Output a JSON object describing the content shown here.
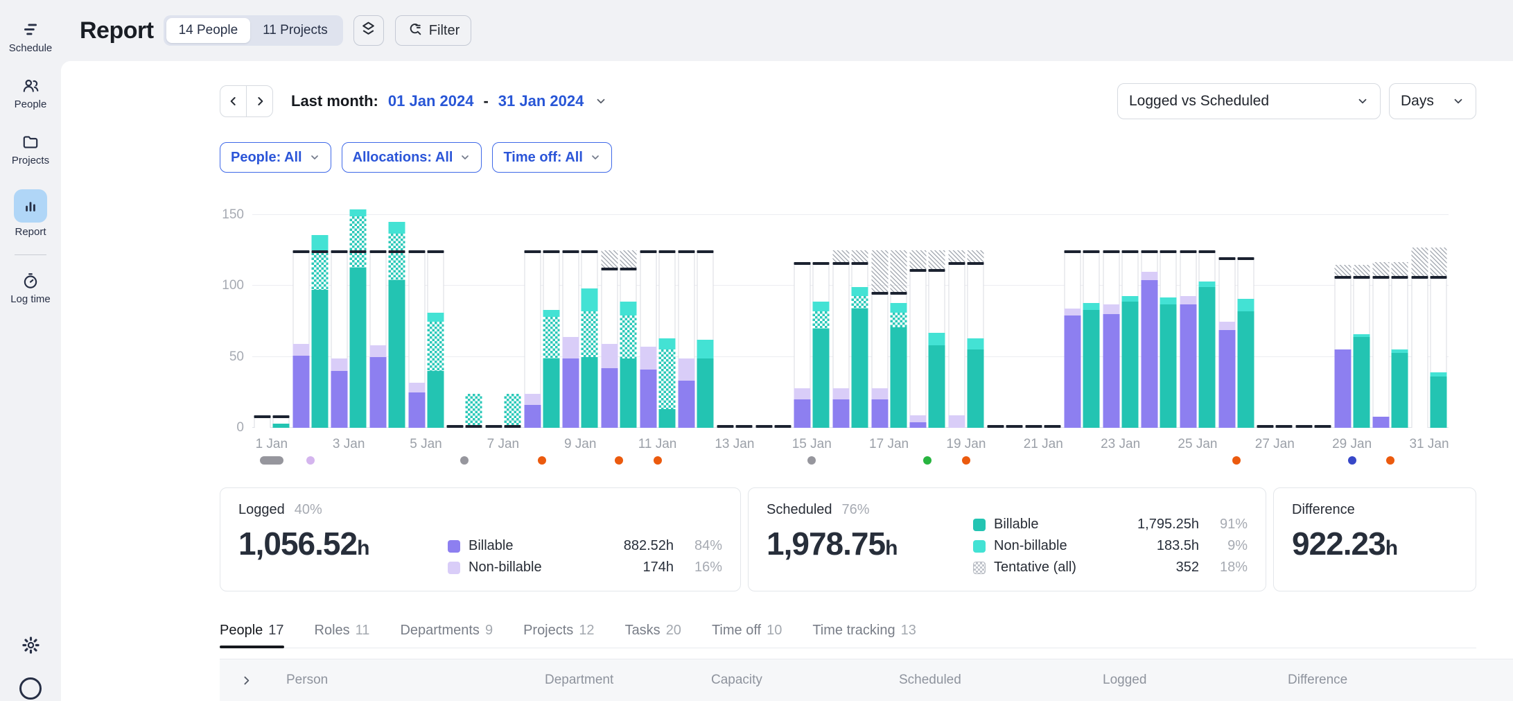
{
  "sidebar": {
    "items": [
      {
        "label": "Schedule",
        "icon": "schedule-icon",
        "active": false
      },
      {
        "label": "People",
        "icon": "people-icon",
        "active": false
      },
      {
        "label": "Projects",
        "icon": "folder-icon",
        "active": false
      },
      {
        "label": "Report",
        "icon": "bar-chart-icon",
        "active": true
      },
      {
        "label": "Log time",
        "icon": "stopwatch-icon",
        "active": false
      }
    ]
  },
  "header": {
    "title": "Report",
    "people_pill": "14 People",
    "projects_pill": "11 Projects",
    "filter_label": "Filter"
  },
  "toolbar": {
    "period_label": "Last month:",
    "start_date": "01 Jan 2024",
    "separator": "-",
    "end_date": "31 Jan 2024",
    "metric_dropdown": "Logged vs Scheduled",
    "unit_dropdown": "Days"
  },
  "filters": [
    {
      "label": "People: All"
    },
    {
      "label": "Allocations: All"
    },
    {
      "label": "Time off: All"
    }
  ],
  "chart_data": {
    "type": "bar",
    "stacked": true,
    "title": "Logged vs Scheduled by day",
    "unit": "hours",
    "ylim": [
      0,
      150
    ],
    "yticks": [
      0,
      50,
      100,
      150
    ],
    "xtick_labels": [
      "1 Jan",
      "3 Jan",
      "5 Jan",
      "7 Jan",
      "9 Jan",
      "11 Jan",
      "13 Jan",
      "15 Jan",
      "17 Jan",
      "19 Jan",
      "21 Jan",
      "23 Jan",
      "25 Jan",
      "27 Jan",
      "29 Jan",
      "31 Jan"
    ],
    "xtick_suffix": "Jan",
    "legend_series": [
      "Logged Billable",
      "Logged Non-billable",
      "Scheduled Billable",
      "Scheduled Tentative",
      "Scheduled Non-billable",
      "Capacity",
      "Tentative capacity"
    ],
    "day_fields": [
      "day",
      "capacity",
      "tentative_capacity_top",
      "logged_billable",
      "logged_nonbillable",
      "scheduled_billable",
      "scheduled_tentative",
      "scheduled_nonbillable"
    ],
    "days": [
      [
        1,
        9,
        0,
        0,
        0,
        3,
        0,
        0
      ],
      [
        2,
        125,
        0,
        51,
        8,
        97,
        28,
        11
      ],
      [
        3,
        125,
        0,
        40,
        9,
        113,
        36,
        5
      ],
      [
        4,
        125,
        0,
        50,
        8,
        104,
        33,
        8
      ],
      [
        5,
        125,
        0,
        25,
        7,
        40,
        35,
        6
      ],
      [
        6,
        0,
        0,
        0,
        0,
        0,
        24,
        0
      ],
      [
        7,
        0,
        0,
        0,
        0,
        0,
        24,
        0
      ],
      [
        8,
        125,
        0,
        16,
        8,
        49,
        29,
        5
      ],
      [
        9,
        125,
        0,
        49,
        15,
        50,
        32,
        16
      ],
      [
        10,
        113,
        125,
        42,
        17,
        49,
        30,
        10
      ],
      [
        11,
        125,
        0,
        41,
        16,
        13,
        42,
        8
      ],
      [
        12,
        125,
        0,
        33,
        16,
        49,
        0,
        13
      ],
      [
        13,
        0,
        0,
        0,
        0,
        0,
        0,
        0
      ],
      [
        14,
        0,
        0,
        0,
        0,
        0,
        0,
        0
      ],
      [
        15,
        117,
        0,
        20,
        8,
        70,
        12,
        7
      ],
      [
        16,
        117,
        125,
        20,
        8,
        84,
        9,
        6
      ],
      [
        17,
        96,
        125,
        20,
        8,
        71,
        10,
        7
      ],
      [
        18,
        112,
        125,
        4,
        5,
        58,
        0,
        9
      ],
      [
        19,
        117,
        125,
        0,
        9,
        55,
        0,
        8
      ],
      [
        20,
        0,
        0,
        0,
        0,
        0,
        0,
        0
      ],
      [
        21,
        0,
        0,
        0,
        0,
        0,
        0,
        0
      ],
      [
        22,
        125,
        0,
        79,
        5,
        83,
        0,
        5
      ],
      [
        23,
        125,
        0,
        80,
        7,
        89,
        0,
        4
      ],
      [
        24,
        125,
        0,
        104,
        6,
        87,
        0,
        5
      ],
      [
        25,
        125,
        0,
        87,
        6,
        99,
        0,
        4
      ],
      [
        26,
        120,
        0,
        69,
        6,
        82,
        0,
        9
      ],
      [
        27,
        0,
        0,
        0,
        0,
        0,
        0,
        0
      ],
      [
        28,
        0,
        0,
        0,
        0,
        0,
        0,
        0
      ],
      [
        29,
        107,
        115,
        55,
        0,
        64,
        0,
        2
      ],
      [
        30,
        107,
        117,
        8,
        0,
        53,
        0,
        2
      ],
      [
        31,
        107,
        127,
        0,
        0,
        36,
        0,
        3
      ]
    ],
    "markers": [
      {
        "day": 1,
        "shape": "pill",
        "color": "gray"
      },
      {
        "day": 2,
        "shape": "dot",
        "color": "lavender"
      },
      {
        "day": 6,
        "shape": "dot",
        "color": "gray"
      },
      {
        "day": 8,
        "shape": "dot",
        "color": "orange"
      },
      {
        "day": 10,
        "shape": "dot",
        "color": "orange"
      },
      {
        "day": 11,
        "shape": "dot",
        "color": "orange"
      },
      {
        "day": 15,
        "shape": "dot",
        "color": "gray"
      },
      {
        "day": 18,
        "shape": "dot",
        "color": "green"
      },
      {
        "day": 19,
        "shape": "dot",
        "color": "orange"
      },
      {
        "day": 26,
        "shape": "dot",
        "color": "orange"
      },
      {
        "day": 29,
        "shape": "dot",
        "color": "blue"
      },
      {
        "day": 30,
        "shape": "dot",
        "color": "orange"
      }
    ],
    "marker_colors": {
      "gray": "#96969d",
      "lavender": "#d4b5ee",
      "orange": "#eb5a0e",
      "green": "#28b440",
      "blue": "#3747c8"
    },
    "colors": {
      "logged_billable": "#8d7ff0",
      "logged_nonbillable": "#d9cdf8",
      "scheduled_billable": "#23c4b2",
      "scheduled_nonbillable": "#43e2d4",
      "scheduled_tentative_checker": "#2bc8b8",
      "capacity_cap": "#1b2230",
      "capacity_border": "#d8dbe2",
      "tentative_capacity_hatch": "#a9aeb6"
    }
  },
  "summary": {
    "logged": {
      "label": "Logged",
      "percent": "40%",
      "value": "1,056.52",
      "unit": "h",
      "legend": [
        {
          "name": "Billable",
          "hours": "882.52h",
          "percent": "84%"
        },
        {
          "name": "Non-billable",
          "hours": "174h",
          "percent": "16%"
        }
      ]
    },
    "scheduled": {
      "label": "Scheduled",
      "percent": "76%",
      "value": "1,978.75",
      "unit": "h",
      "legend": [
        {
          "name": "Billable",
          "hours": "1,795.25h",
          "percent": "91%"
        },
        {
          "name": "Non-billable",
          "hours": "183.5h",
          "percent": "9%"
        },
        {
          "name": "Tentative (all)",
          "hours": "352",
          "percent": "18%"
        }
      ]
    },
    "difference": {
      "label": "Difference",
      "value": "922.23",
      "unit": "h"
    }
  },
  "tabs": [
    {
      "label": "People",
      "count": "17",
      "active": true
    },
    {
      "label": "Roles",
      "count": "11",
      "active": false
    },
    {
      "label": "Departments",
      "count": "9",
      "active": false
    },
    {
      "label": "Projects",
      "count": "12",
      "active": false
    },
    {
      "label": "Tasks",
      "count": "20",
      "active": false
    },
    {
      "label": "Time off",
      "count": "10",
      "active": false
    },
    {
      "label": "Time tracking",
      "count": "13",
      "active": false
    }
  ],
  "table": {
    "columns": [
      "Person",
      "Department",
      "Capacity",
      "Scheduled",
      "Logged",
      "Difference"
    ]
  }
}
